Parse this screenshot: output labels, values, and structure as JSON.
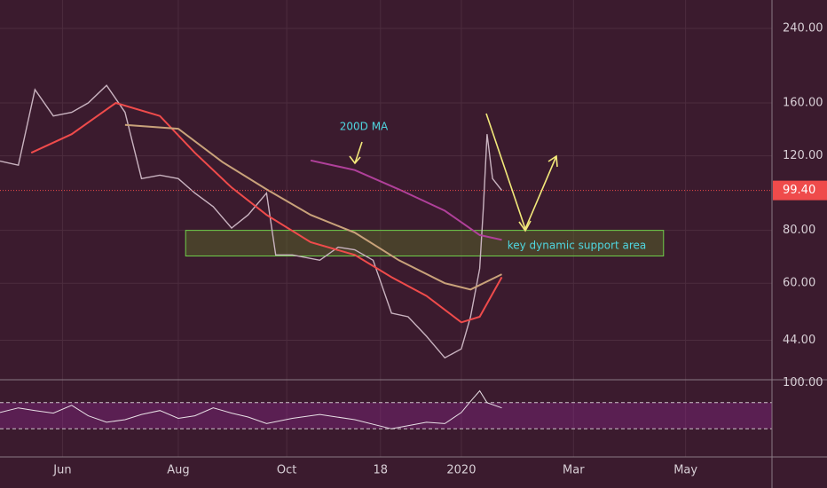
{
  "chart_data": {
    "type": "line",
    "log_scale": true,
    "grid": true,
    "xlim": [
      0,
      420
    ],
    "xticks": [
      {
        "value": 34,
        "label": "Jun"
      },
      {
        "value": 97,
        "label": "Aug"
      },
      {
        "value": 156,
        "label": "Oct"
      },
      {
        "value": 207,
        "label": "18"
      },
      {
        "value": 251,
        "label": "2020"
      },
      {
        "value": 312,
        "label": "Mar"
      },
      {
        "value": 373,
        "label": "May"
      }
    ],
    "ylim": [
      35.5,
      280
    ],
    "yticks": [
      {
        "value": 44,
        "label": "44.00"
      },
      {
        "value": 60,
        "label": "60.00"
      },
      {
        "value": 80,
        "label": "80.00"
      },
      {
        "value": 120,
        "label": "120.00"
      },
      {
        "value": 160,
        "label": "160.00"
      },
      {
        "value": 240,
        "label": "240.00"
      }
    ],
    "series": [
      {
        "color": "#c9b3c0",
        "x": [
          0,
          10,
          19,
          29,
          39,
          48,
          58,
          68,
          77,
          87,
          97,
          106,
          116,
          126,
          135,
          145,
          150,
          159,
          174,
          184,
          193,
          203,
          213,
          222,
          232,
          242,
          251,
          256,
          261,
          263,
          265,
          268,
          273
        ],
        "values": [
          116.6,
          114,
          172,
          149,
          152,
          160,
          176,
          152,
          106,
          108,
          106,
          98,
          91,
          81,
          87,
          98,
          70,
          70,
          68,
          73,
          72,
          68,
          51,
          50,
          45,
          40,
          42,
          50,
          65,
          91,
          135,
          106,
          99.4
        ]
      },
      {
        "color": "#ef4b4b",
        "x": [
          17,
          39,
          63,
          87,
          106,
          126,
          145,
          169,
          193,
          213,
          232,
          251,
          261,
          273
        ],
        "values": [
          122,
          135,
          160,
          149,
          122,
          101,
          87,
          75,
          70,
          62,
          56,
          48.5,
          50,
          62
        ]
      },
      {
        "color": "#c9a27a",
        "x": [
          68,
          97,
          121,
          145,
          169,
          193,
          217,
          242,
          256,
          273
        ],
        "values": [
          142,
          139,
          116,
          100,
          87,
          79,
          68,
          60,
          58,
          63
        ]
      },
      {
        "color": "#b0409a",
        "x": [
          169,
          193,
          217,
          242,
          261,
          273
        ],
        "values": [
          117,
          111,
          100,
          89,
          78,
          76
        ]
      }
    ],
    "price_line": {
      "value": 99.4,
      "label": "99.40"
    },
    "support_zone": {
      "x": [
        101,
        361
      ],
      "y": [
        69.6,
        80
      ]
    },
    "annotations": [
      "200D MA",
      "key dynamic support area"
    ],
    "rsi": {
      "ylim": [
        -13,
        105
      ],
      "yticks": [
        {
          "value": 100,
          "label": "100.00"
        }
      ],
      "bands": [
        30,
        70
      ],
      "color": "#e8e0e6",
      "x": [
        0,
        10,
        19,
        29,
        39,
        48,
        58,
        68,
        77,
        87,
        97,
        106,
        116,
        126,
        135,
        145,
        159,
        174,
        193,
        213,
        232,
        242,
        251,
        256,
        261,
        265,
        273
      ],
      "values": [
        55,
        62,
        58,
        54,
        66,
        50,
        40,
        44,
        52,
        58,
        46,
        50,
        62,
        54,
        48,
        38,
        46,
        52,
        44,
        30,
        40,
        38,
        55,
        72,
        88,
        70,
        62
      ]
    }
  }
}
